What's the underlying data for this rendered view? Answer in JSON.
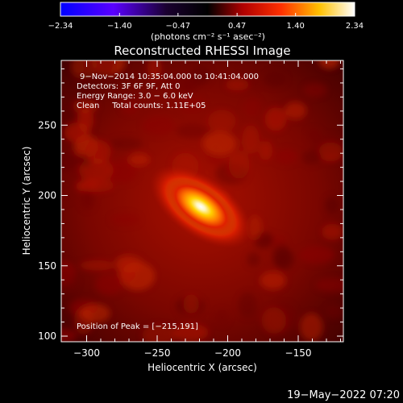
{
  "chart_data": {
    "type": "heatmap",
    "title": "Reconstructed RHESSI Image",
    "xlabel": "Heliocentric X (arcsec)",
    "ylabel": "Heliocentric Y (arcsec)",
    "xlim": [
      -318,
      -118
    ],
    "ylim": [
      96,
      296
    ],
    "xticks": [
      -300,
      -250,
      -200,
      -150
    ],
    "yticks": [
      100,
      150,
      200,
      250
    ],
    "xtick_labels": [
      "−300",
      "−250",
      "−200",
      "−150"
    ],
    "ytick_labels": [
      "100",
      "150",
      "200",
      "250"
    ],
    "colorbar": {
      "ticks": [
        -2.34,
        -1.4,
        -0.47,
        0.47,
        1.4,
        2.34
      ],
      "tick_labels": [
        "−2.34",
        "−1.40",
        "−0.47",
        "0.47",
        "1.40",
        "2.34"
      ],
      "unit_label": "(photons cm⁻² s⁻¹ asec⁻²)",
      "colors": [
        "#0000ff",
        "#8000ff",
        "#000000",
        "#ff0000",
        "#ffd000",
        "#ffffff"
      ]
    },
    "info_lines": [
      "9−Nov−2014 10:35:04.000 to 10:41:04.000",
      "Detectors: 3F 6F 9F, Att 0",
      "Energy Range: 3.0 − 6.0 keV",
      "Clean     Total counts: 1.11E+05"
    ],
    "peak_label": "Position of Peak = [−215,191]",
    "peak": {
      "x": -215,
      "y": 191
    },
    "source": {
      "x": -219,
      "y": 192,
      "sigma_major": 13,
      "sigma_minor": 6,
      "angle_deg": 35
    },
    "timestamp": "19−May−2022 07:20"
  }
}
